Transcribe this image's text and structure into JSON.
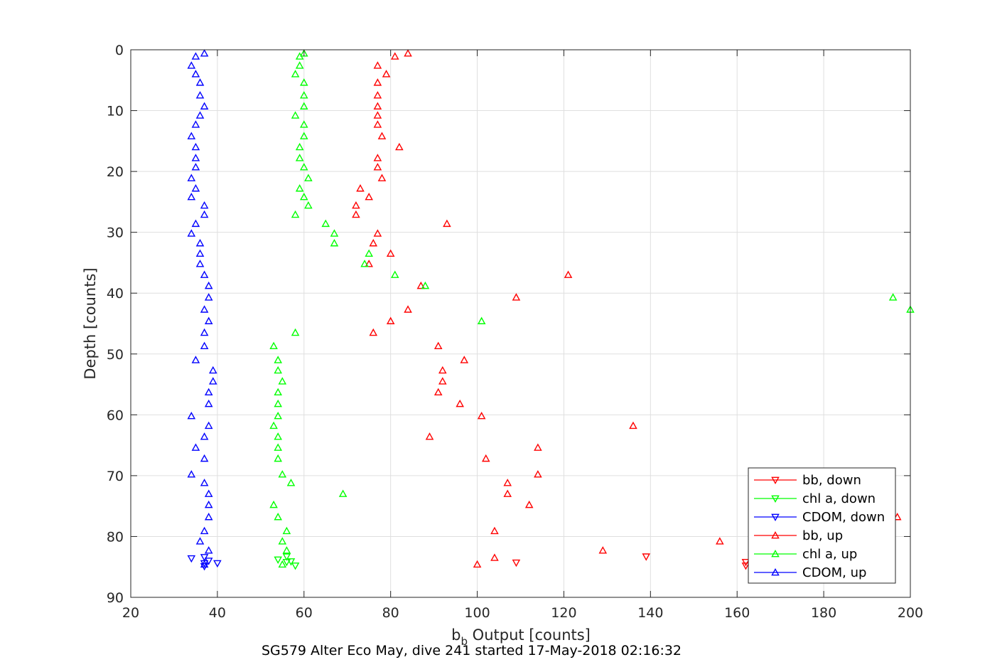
{
  "caption": "SG579 Alter Eco May, dive 241 started 17-May-2018 02:16:32",
  "chart_data": {
    "type": "scatter",
    "xlabel_main": "b",
    "xlabel_sub": "b",
    "xlabel_rest": " Output [counts]",
    "ylabel": "Depth [counts]",
    "xlim": [
      20,
      200
    ],
    "ylim": [
      90,
      0
    ],
    "y_reversed": true,
    "grid": true,
    "xticks": [
      20,
      40,
      60,
      80,
      100,
      120,
      140,
      160,
      180,
      200
    ],
    "yticks": [
      0,
      10,
      20,
      30,
      40,
      50,
      60,
      70,
      80,
      90
    ],
    "legend_position": "bottom-right",
    "series": [
      {
        "name": "bb, down",
        "color": "#ff0000",
        "marker": "triangle-down",
        "points": [
          [
            109,
            84.3
          ],
          [
            139,
            83.3
          ],
          [
            162,
            84.2
          ],
          [
            162,
            84.8
          ]
        ]
      },
      {
        "name": "chl a, down",
        "color": "#00ff00",
        "marker": "triangle-down",
        "points": [
          [
            54,
            83.8
          ],
          [
            56,
            83.3
          ],
          [
            56,
            84.2
          ],
          [
            57,
            84.1
          ],
          [
            58,
            84.8
          ]
        ]
      },
      {
        "name": "CDOM, down",
        "color": "#0000ff",
        "marker": "triangle-down",
        "points": [
          [
            34,
            83.6
          ],
          [
            37,
            83.4
          ],
          [
            37,
            84.4
          ],
          [
            38,
            84.0
          ],
          [
            40,
            84.4
          ],
          [
            37,
            84.9
          ]
        ]
      },
      {
        "name": "bb, up",
        "color": "#ff0000",
        "marker": "triangle-up",
        "points": [
          [
            84,
            0.6
          ],
          [
            81,
            1.1
          ],
          [
            77,
            2.6
          ],
          [
            79,
            4.0
          ],
          [
            77,
            5.4
          ],
          [
            77,
            7.5
          ],
          [
            77,
            9.3
          ],
          [
            77,
            10.8
          ],
          [
            77,
            12.3
          ],
          [
            78,
            14.2
          ],
          [
            82,
            16.0
          ],
          [
            77,
            17.8
          ],
          [
            77,
            19.3
          ],
          [
            78,
            21.1
          ],
          [
            73,
            22.8
          ],
          [
            75,
            24.2
          ],
          [
            72,
            25.6
          ],
          [
            72,
            27.1
          ],
          [
            93,
            28.6
          ],
          [
            77,
            30.2
          ],
          [
            76,
            31.8
          ],
          [
            80,
            33.5
          ],
          [
            75,
            35.2
          ],
          [
            121,
            37.0
          ],
          [
            87,
            38.8
          ],
          [
            109,
            40.7
          ],
          [
            84,
            42.7
          ],
          [
            80,
            44.6
          ],
          [
            76,
            46.5
          ],
          [
            91,
            48.7
          ],
          [
            97,
            51.0
          ],
          [
            92,
            52.7
          ],
          [
            92,
            54.5
          ],
          [
            91,
            56.3
          ],
          [
            96,
            58.2
          ],
          [
            101,
            60.2
          ],
          [
            136,
            61.8
          ],
          [
            89,
            63.6
          ],
          [
            114,
            65.4
          ],
          [
            102,
            67.2
          ],
          [
            114,
            69.8
          ],
          [
            107,
            71.2
          ],
          [
            107,
            73.0
          ],
          [
            112,
            74.8
          ],
          [
            197,
            76.8
          ],
          [
            104,
            79.1
          ],
          [
            156,
            80.8
          ],
          [
            129,
            82.3
          ],
          [
            104,
            83.5
          ],
          [
            100,
            84.6
          ]
        ]
      },
      {
        "name": "chl a, up",
        "color": "#00ff00",
        "marker": "triangle-up",
        "points": [
          [
            60,
            0.6
          ],
          [
            59,
            1.1
          ],
          [
            59,
            2.6
          ],
          [
            58,
            4.0
          ],
          [
            60,
            5.4
          ],
          [
            60,
            7.5
          ],
          [
            60,
            9.3
          ],
          [
            58,
            10.8
          ],
          [
            60,
            12.3
          ],
          [
            60,
            14.2
          ],
          [
            59,
            16.0
          ],
          [
            59,
            17.8
          ],
          [
            60,
            19.3
          ],
          [
            61,
            21.1
          ],
          [
            59,
            22.8
          ],
          [
            60,
            24.2
          ],
          [
            61,
            25.6
          ],
          [
            58,
            27.1
          ],
          [
            65,
            28.6
          ],
          [
            67,
            30.2
          ],
          [
            67,
            31.8
          ],
          [
            75,
            33.5
          ],
          [
            74,
            35.2
          ],
          [
            81,
            37.0
          ],
          [
            88,
            38.8
          ],
          [
            196,
            40.7
          ],
          [
            200,
            42.7
          ],
          [
            101,
            44.6
          ],
          [
            58,
            46.5
          ],
          [
            53,
            48.7
          ],
          [
            54,
            51.0
          ],
          [
            54,
            52.7
          ],
          [
            55,
            54.5
          ],
          [
            54,
            56.3
          ],
          [
            54,
            58.2
          ],
          [
            54,
            60.2
          ],
          [
            53,
            61.8
          ],
          [
            54,
            63.6
          ],
          [
            54,
            65.4
          ],
          [
            54,
            67.2
          ],
          [
            55,
            69.8
          ],
          [
            57,
            71.2
          ],
          [
            69,
            73.0
          ],
          [
            53,
            74.8
          ],
          [
            54,
            76.8
          ],
          [
            56,
            79.1
          ],
          [
            55,
            80.8
          ],
          [
            56,
            82.3
          ],
          [
            55,
            84.6
          ]
        ]
      },
      {
        "name": "CDOM, up",
        "color": "#0000ff",
        "marker": "triangle-up",
        "points": [
          [
            37,
            0.6
          ],
          [
            35,
            1.1
          ],
          [
            34,
            2.6
          ],
          [
            35,
            4.0
          ],
          [
            36,
            5.4
          ],
          [
            36,
            7.5
          ],
          [
            37,
            9.3
          ],
          [
            36,
            10.8
          ],
          [
            35,
            12.3
          ],
          [
            34,
            14.2
          ],
          [
            35,
            16.0
          ],
          [
            35,
            17.8
          ],
          [
            35,
            19.3
          ],
          [
            34,
            21.1
          ],
          [
            35,
            22.8
          ],
          [
            34,
            24.2
          ],
          [
            37,
            25.6
          ],
          [
            37,
            27.1
          ],
          [
            35,
            28.6
          ],
          [
            34,
            30.2
          ],
          [
            36,
            31.8
          ],
          [
            36,
            33.5
          ],
          [
            36,
            35.2
          ],
          [
            37,
            37.0
          ],
          [
            38,
            38.8
          ],
          [
            38,
            40.7
          ],
          [
            37,
            42.7
          ],
          [
            38,
            44.6
          ],
          [
            37,
            46.5
          ],
          [
            37,
            48.7
          ],
          [
            35,
            51.0
          ],
          [
            39,
            52.7
          ],
          [
            39,
            54.5
          ],
          [
            38,
            56.3
          ],
          [
            38,
            58.2
          ],
          [
            34,
            60.2
          ],
          [
            38,
            61.8
          ],
          [
            37,
            63.6
          ],
          [
            35,
            65.4
          ],
          [
            37,
            67.2
          ],
          [
            34,
            69.8
          ],
          [
            37,
            71.2
          ],
          [
            38,
            73.0
          ],
          [
            38,
            74.8
          ],
          [
            38,
            76.8
          ],
          [
            37,
            79.1
          ],
          [
            36,
            80.8
          ],
          [
            38,
            82.3
          ],
          [
            37,
            84.6
          ]
        ]
      }
    ]
  }
}
